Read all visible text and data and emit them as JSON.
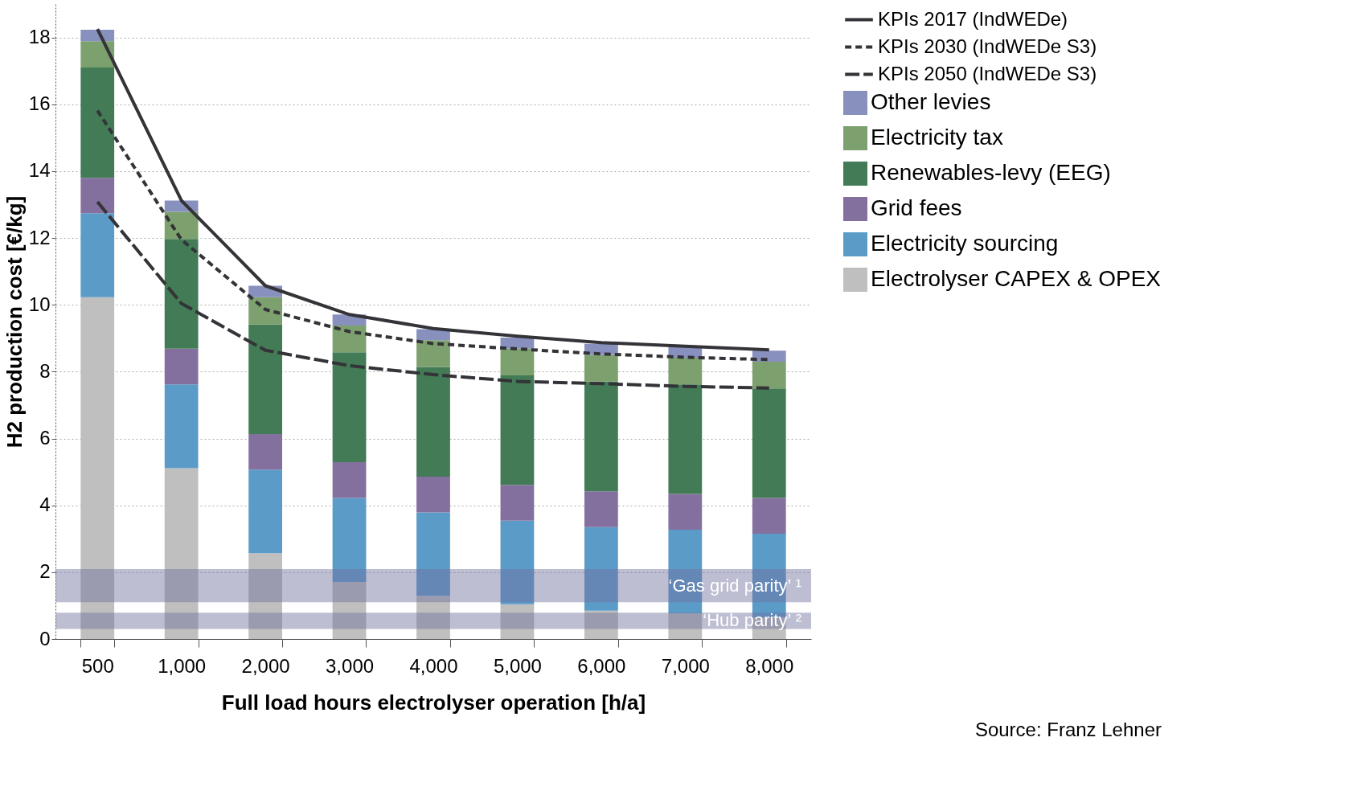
{
  "chart_data": {
    "type": "bar",
    "stacked": true,
    "xlabel": "Full load hours electrolyser operation [h/a]",
    "ylabel": "H2 production cost [€/kg]",
    "categories": [
      "500",
      "1,000",
      "2,000",
      "3,000",
      "4,000",
      "5,000",
      "6,000",
      "7,000",
      "8,000"
    ],
    "ylim": [
      0,
      19
    ],
    "yticks": [
      0,
      2,
      4,
      6,
      8,
      10,
      12,
      14,
      16,
      18
    ],
    "grid": "y",
    "legend": "right",
    "series": [
      {
        "name": "Electrolyser CAPEX & OPEX",
        "color": "#bfbfbf",
        "values": [
          10.23,
          5.11,
          2.57,
          1.71,
          1.29,
          1.04,
          0.85,
          0.77,
          0.65
        ]
      },
      {
        "name": "Electricity  sourcing",
        "color": "#5b9bc8",
        "values": [
          2.51,
          2.51,
          2.5,
          2.51,
          2.5,
          2.5,
          2.5,
          2.5,
          2.5
        ]
      },
      {
        "name": "Grid fees",
        "color": "#84709f",
        "values": [
          1.06,
          1.07,
          1.06,
          1.07,
          1.07,
          1.07,
          1.07,
          1.07,
          1.07
        ]
      },
      {
        "name": "Renewables-levy (EEG)",
        "color": "#427b55",
        "values": [
          3.3,
          3.28,
          3.28,
          3.29,
          3.28,
          3.28,
          3.28,
          3.28,
          3.28
        ]
      },
      {
        "name": "Electricity tax",
        "color": "#7da16e",
        "values": [
          0.79,
          0.81,
          0.82,
          0.8,
          0.8,
          0.8,
          0.8,
          0.8,
          0.8
        ]
      },
      {
        "name": "Other levies",
        "color": "#8890bd",
        "values": [
          0.34,
          0.34,
          0.34,
          0.33,
          0.33,
          0.33,
          0.33,
          0.33,
          0.33
        ]
      },
      {
        "name": "KPIs 2017 (IndWEDe)",
        "type": "line",
        "line_style": "solid",
        "color": "#333338",
        "values": [
          18.25,
          13.12,
          10.57,
          9.71,
          9.29,
          9.06,
          8.87,
          8.76,
          8.65
        ]
      },
      {
        "name": "KPIs 2030 (IndWEDe S3)",
        "type": "line",
        "line_style": "dotted",
        "color": "#333338",
        "values": [
          15.81,
          11.95,
          9.86,
          9.2,
          8.84,
          8.68,
          8.53,
          8.43,
          8.36
        ]
      },
      {
        "name": "KPIs 2050 (IndWEDe S3)",
        "type": "line",
        "line_style": "dashed",
        "color": "#333338",
        "values": [
          13.08,
          10.04,
          8.64,
          8.18,
          7.91,
          7.71,
          7.64,
          7.56,
          7.51
        ]
      }
    ],
    "bands": [
      {
        "axis": "y",
        "from": 1.1,
        "to": 2.09,
        "label": "‘Gas grid parity’ ¹",
        "color": "#6e6e9e"
      },
      {
        "axis": "y",
        "from": 0.3,
        "to": 0.79,
        "label": "‘Hub parity’ ²",
        "color": "#6e6e9e"
      }
    ],
    "annotations": [
      "Source: Franz Lehner"
    ]
  }
}
